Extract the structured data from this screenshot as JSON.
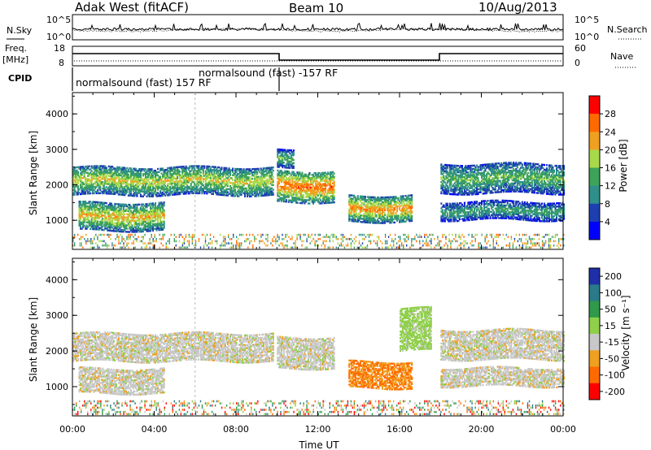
{
  "header": {
    "station": "Adak West (fitACF)",
    "beam": "Beam 10",
    "date": "10/Aug/2013"
  },
  "noise_panel": {
    "left_label": "N.Sky",
    "right_label": "N.Search",
    "ticks_left": [
      "10^5",
      "10^0"
    ],
    "ticks_right": [
      "10^5",
      "10^0"
    ]
  },
  "freq_panel": {
    "left_label_1": "Freq.",
    "left_label_2": "[MHz]",
    "ticks_left": [
      "18",
      "8"
    ],
    "ticks_right": [
      "60",
      "0"
    ],
    "right_label": "Nave"
  },
  "cpid_panel": {
    "label": "CPID",
    "segment_1": "normalsound (fast) 157 RF",
    "segment_2": "normalsound (fast) -157 RF"
  },
  "chart_data": [
    {
      "type": "heatmap",
      "title": "",
      "ylabel": "Slant Range [km]",
      "xlabel": "",
      "ylim": [
        180,
        4600
      ],
      "yticks": [
        "1000",
        "2000",
        "3000",
        "4000"
      ],
      "colorbar": {
        "label": "Power [dB]",
        "ticks": [
          "4",
          "8",
          "12",
          "16",
          "20",
          "24",
          "28"
        ],
        "colors": [
          "#0000ff",
          "#1e3fb0",
          "#2f8f8a",
          "#3ea35a",
          "#a8d94a",
          "#f0a020",
          "#ff6a00",
          "#ff0000"
        ],
        "range": [
          0,
          32
        ]
      },
      "features": [
        {
          "t0": 0.0,
          "t1": 9.8,
          "r_lo": 1700,
          "r_hi": 2500,
          "power": 18
        },
        {
          "t0": 0.3,
          "t1": 4.5,
          "r_lo": 700,
          "r_hi": 1500,
          "power": 20
        },
        {
          "t0": 10.0,
          "t1": 12.8,
          "r_lo": 1500,
          "r_hi": 2400,
          "power": 24
        },
        {
          "t0": 10.0,
          "t1": 10.8,
          "r_lo": 2500,
          "r_hi": 3000,
          "power": 14
        },
        {
          "t0": 13.5,
          "t1": 16.6,
          "r_lo": 950,
          "r_hi": 1700,
          "power": 22
        },
        {
          "t0": 18.0,
          "t1": 24.0,
          "r_lo": 1750,
          "r_hi": 2600,
          "power": 14
        },
        {
          "t0": 18.0,
          "t1": 24.0,
          "r_lo": 1000,
          "r_hi": 1500,
          "power": 12
        }
      ]
    },
    {
      "type": "heatmap",
      "title": "",
      "ylabel": "Slant Range [km]",
      "xlabel": "Time UT",
      "ylim": [
        180,
        4600
      ],
      "yticks": [
        "1000",
        "2000",
        "3000",
        "4000"
      ],
      "xticks": [
        "00:00",
        "04:00",
        "08:00",
        "12:00",
        "16:00",
        "20:00",
        "00:00"
      ],
      "xlim": [
        0,
        24
      ],
      "colorbar": {
        "label": "Velocity [m s⁻¹]",
        "ticks": [
          "200",
          "100",
          "50",
          "15",
          "-15",
          "-50",
          "-100",
          "-200"
        ],
        "colors": [
          "#1e2fa8",
          "#2a7a8a",
          "#2f9a4a",
          "#8fd04a",
          "#c8c8c8",
          "#f0a020",
          "#ff6a00",
          "#ff0000"
        ],
        "range": [
          -250,
          250
        ]
      },
      "features": [
        {
          "t0": 0.0,
          "t1": 9.8,
          "r_lo": 1700,
          "r_hi": 2500,
          "velocity": 0
        },
        {
          "t0": 0.3,
          "t1": 4.5,
          "r_lo": 800,
          "r_hi": 1500,
          "velocity": 0
        },
        {
          "t0": 10.0,
          "t1": 12.8,
          "r_lo": 1500,
          "r_hi": 2400,
          "velocity": 0
        },
        {
          "t0": 13.5,
          "t1": 16.6,
          "r_lo": 950,
          "r_hi": 1700,
          "velocity": -50
        },
        {
          "t0": 16.0,
          "t1": 17.5,
          "r_lo": 2000,
          "r_hi": 3200,
          "velocity": 30
        },
        {
          "t0": 18.0,
          "t1": 24.0,
          "r_lo": 1750,
          "r_hi": 2600,
          "velocity": 0
        },
        {
          "t0": 18.0,
          "t1": 24.0,
          "r_lo": 1000,
          "r_hi": 1500,
          "velocity": 0
        }
      ]
    }
  ]
}
